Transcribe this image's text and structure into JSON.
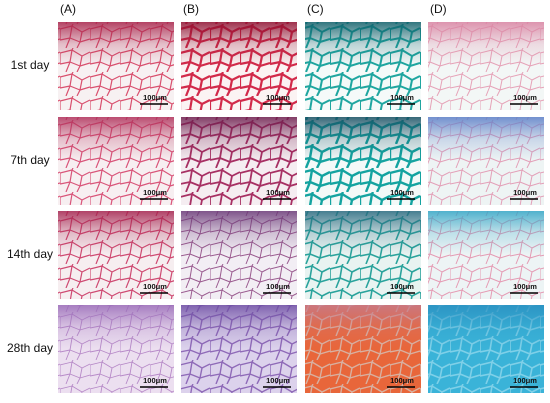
{
  "column_labels": [
    "(A)",
    "(B)",
    "(C)",
    "(D)"
  ],
  "row_labels": [
    "1st day",
    "7th day",
    "14th day",
    "28th day"
  ],
  "panels": [
    [
      {
        "scale_bar": "100μm"
      },
      {
        "scale_bar": "100μm"
      },
      {
        "scale_bar": "100μm"
      },
      {
        "scale_bar": "100μm"
      }
    ],
    [
      {
        "scale_bar": "100μm"
      },
      {
        "scale_bar": "100μm"
      },
      {
        "scale_bar": "100μm"
      },
      {
        "scale_bar": "100μm"
      }
    ],
    [
      {
        "scale_bar": "100μm"
      },
      {
        "scale_bar": "100μm"
      },
      {
        "scale_bar": "100μm"
      },
      {
        "scale_bar": "100μm"
      }
    ],
    [
      {
        "scale_bar": "100μm"
      },
      {
        "scale_bar": "100μm"
      },
      {
        "scale_bar": "100μm"
      },
      {
        "scale_bar": "100μm"
      }
    ]
  ]
}
